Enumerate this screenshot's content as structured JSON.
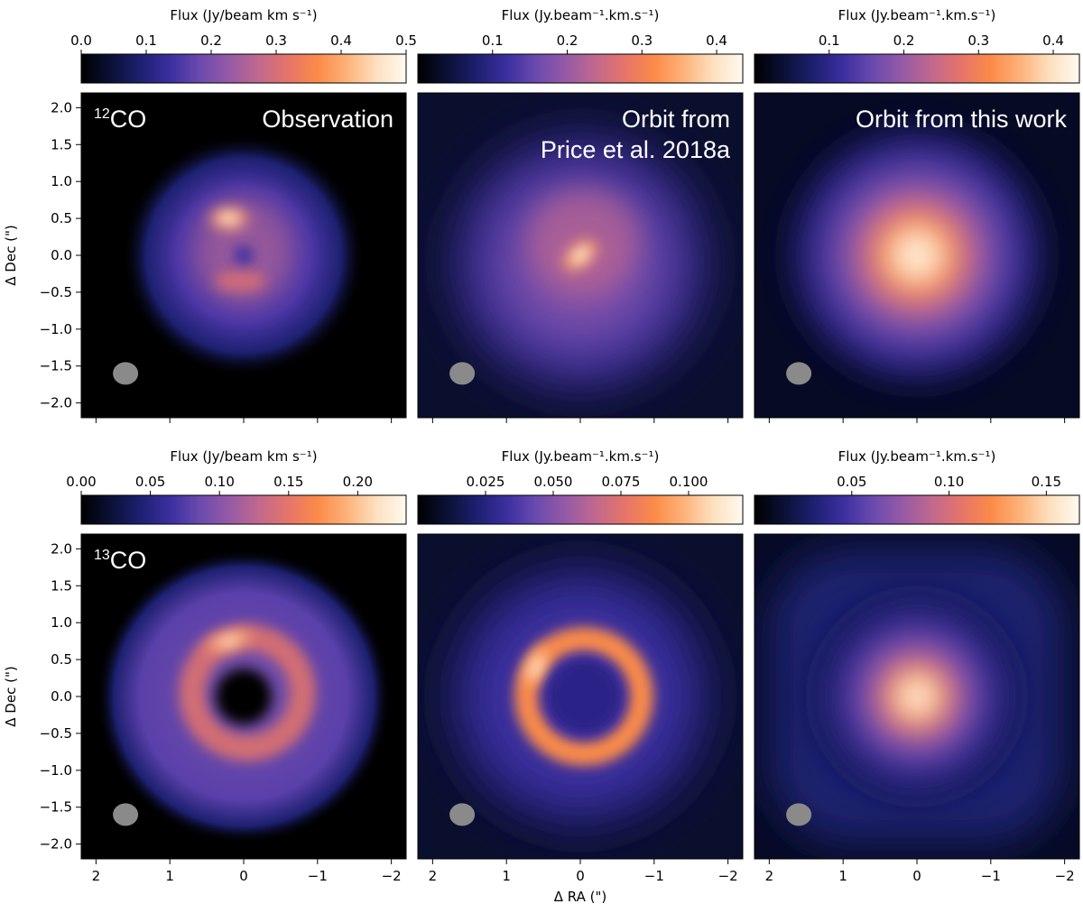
{
  "colors": {
    "colormap": [
      "#000000",
      "#0b1136",
      "#1d2070",
      "#3b2fa0",
      "#6a4aae",
      "#965aa6",
      "#c0688e",
      "#e5746a",
      "#fb8a48",
      "#fdb27a",
      "#fde0bf",
      "#fffaf0"
    ],
    "beam": "#8a8a8a",
    "panel_text": "#ffffff",
    "axis": "#000000"
  },
  "chart_data": [
    {
      "type": "heatmap",
      "row": 0,
      "col": 0,
      "label": "12CO",
      "label_prefix": "12",
      "label_main": "CO",
      "title": "Observation",
      "colorbar": {
        "label": "Flux (Jy/beam km s⁻¹)",
        "ticks": [
          "0.0",
          "0.1",
          "0.2",
          "0.3",
          "0.4",
          "0.5"
        ],
        "tick_values": [
          0.0,
          0.1,
          0.2,
          0.3,
          0.4,
          0.5
        ],
        "range": [
          0.0,
          0.5
        ]
      },
      "ylabel": "Δ Dec (\")",
      "yticks": [
        "2.0",
        "1.5",
        "1.0",
        "0.5",
        "0.0",
        "−0.5",
        "−1.0",
        "−1.5",
        "−2.0"
      ],
      "ytick_values": [
        2.0,
        1.5,
        1.0,
        0.5,
        0.0,
        -0.5,
        -1.0,
        -1.5,
        -2.0
      ],
      "xlim": [
        2.2,
        -2.2
      ],
      "ylim": [
        -2.2,
        2.2
      ],
      "beam": {
        "x": 1.6,
        "y": -1.6
      }
    },
    {
      "type": "heatmap",
      "row": 0,
      "col": 1,
      "title_lines": [
        "Orbit from",
        "Price et al. 2018a"
      ],
      "colorbar": {
        "label": "Flux (Jy.beam⁻¹.km.s⁻¹)",
        "ticks": [
          "0.1",
          "0.2",
          "0.3",
          "0.4"
        ],
        "tick_values": [
          0.1,
          0.2,
          0.3,
          0.4
        ],
        "range": [
          0.0,
          0.435
        ]
      },
      "xlim": [
        2.2,
        -2.2
      ],
      "ylim": [
        -2.2,
        2.2
      ],
      "beam": {
        "x": 1.6,
        "y": -1.6
      }
    },
    {
      "type": "heatmap",
      "row": 0,
      "col": 2,
      "title": "Orbit from this work",
      "colorbar": {
        "label": "Flux (Jy.beam⁻¹.km.s⁻¹)",
        "ticks": [
          "0.1",
          "0.2",
          "0.3",
          "0.4"
        ],
        "tick_values": [
          0.1,
          0.2,
          0.3,
          0.4
        ],
        "range": [
          0.0,
          0.435
        ]
      },
      "xlim": [
        2.2,
        -2.2
      ],
      "ylim": [
        -2.2,
        2.2
      ],
      "beam": {
        "x": 1.6,
        "y": -1.6
      }
    },
    {
      "type": "heatmap",
      "row": 1,
      "col": 0,
      "label": "13CO",
      "label_prefix": "13",
      "label_main": "CO",
      "colorbar": {
        "label": "Flux (Jy/beam km s⁻¹)",
        "ticks": [
          "0.00",
          "0.05",
          "0.10",
          "0.15",
          "0.20"
        ],
        "tick_values": [
          0.0,
          0.05,
          0.1,
          0.15,
          0.2
        ],
        "range": [
          0.0,
          0.235
        ]
      },
      "ylabel": "Δ Dec (\")",
      "yticks": [
        "2.0",
        "1.5",
        "1.0",
        "0.5",
        "0.0",
        "−0.5",
        "−1.0",
        "−1.5",
        "−2.0"
      ],
      "ytick_values": [
        2.0,
        1.5,
        1.0,
        0.5,
        0.0,
        -0.5,
        -1.0,
        -1.5,
        -2.0
      ],
      "xlabel": "",
      "xticks": [
        "2",
        "1",
        "0",
        "−1",
        "−2"
      ],
      "xtick_values": [
        2,
        1,
        0,
        -1,
        -2
      ],
      "xlim": [
        2.2,
        -2.2
      ],
      "ylim": [
        -2.2,
        2.2
      ],
      "beam": {
        "x": 1.6,
        "y": -1.6
      }
    },
    {
      "type": "heatmap",
      "row": 1,
      "col": 1,
      "colorbar": {
        "label": "Flux (Jy.beam⁻¹.km.s⁻¹)",
        "ticks": [
          "0.025",
          "0.050",
          "0.075",
          "0.100"
        ],
        "tick_values": [
          0.025,
          0.05,
          0.075,
          0.1
        ],
        "range": [
          0.0,
          0.12
        ]
      },
      "xlabel": "Δ RA (\")",
      "xticks": [
        "2",
        "1",
        "0",
        "−1",
        "−2"
      ],
      "xtick_values": [
        2,
        1,
        0,
        -1,
        -2
      ],
      "xlim": [
        2.2,
        -2.2
      ],
      "ylim": [
        -2.2,
        2.2
      ],
      "beam": {
        "x": 1.6,
        "y": -1.6
      }
    },
    {
      "type": "heatmap",
      "row": 1,
      "col": 2,
      "colorbar": {
        "label": "Flux (Jy.beam⁻¹.km.s⁻¹)",
        "ticks": [
          "0.05",
          "0.10",
          "0.15"
        ],
        "tick_values": [
          0.05,
          0.1,
          0.15
        ],
        "range": [
          0.0,
          0.167
        ]
      },
      "xticks": [
        "2",
        "1",
        "0",
        "−1",
        "−2"
      ],
      "xtick_values": [
        2,
        1,
        0,
        -1,
        -2
      ],
      "xlim": [
        2.2,
        -2.2
      ],
      "ylim": [
        -2.2,
        2.2
      ],
      "beam": {
        "x": 1.6,
        "y": -1.6
      }
    }
  ]
}
